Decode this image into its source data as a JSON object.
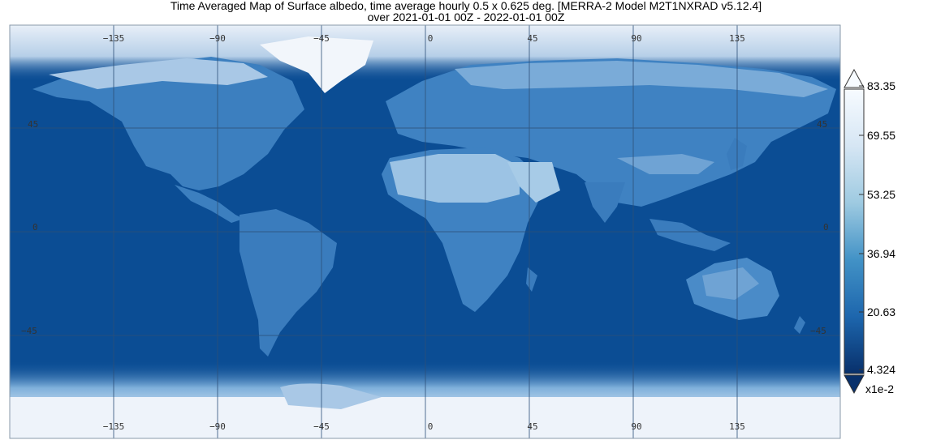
{
  "title": {
    "line1": "Time Averaged Map of Surface albedo, time average hourly 0.5 x 0.625 deg. [MERRA-2 Model M2T1NXRAD v5.12.4]",
    "line2": "over 2021-01-01 00Z - 2022-01-01 00Z"
  },
  "map": {
    "lon_ticks": [
      "−135",
      "−90",
      "−45",
      "0",
      "45",
      "90",
      "135"
    ],
    "lat_ticks": [
      "45",
      "0",
      "−45"
    ],
    "lon_range": [
      -180,
      180
    ],
    "lat_range": [
      -90,
      90
    ],
    "colors": {
      "ocean": "#0b4d94",
      "land_low": "#2b6fb5",
      "land_mid": "#4a8bc8",
      "desert": "#8bb9dd",
      "snow": "#e6eef8",
      "grid": "#3a5a80"
    }
  },
  "colorbar": {
    "labels": [
      "83.35",
      "69.55",
      "53.25",
      "36.94",
      "20.63",
      "4.324"
    ],
    "multiplier": "x1e-2",
    "gradient": [
      "#f4f7fc",
      "#d7e6f4",
      "#9cc6e4",
      "#5a9ed3",
      "#2272b5",
      "#08306b"
    ]
  }
}
